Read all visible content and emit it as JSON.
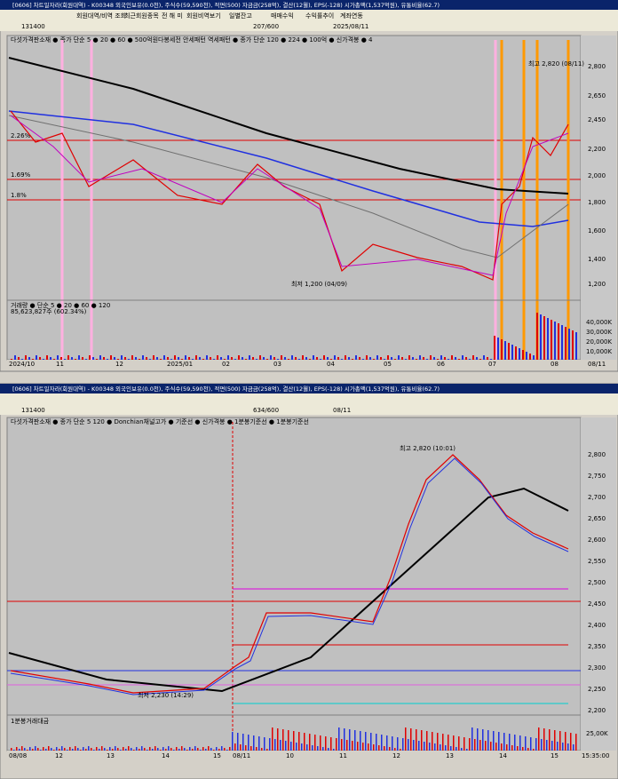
{
  "top_window": {
    "title": "[0606] 차트일자라(회원대역) - K00348 외국인보유(0.0천), 주식수(59,590천), 적면(500) 자금금(258억), 결산(12월), EPS(-128) 시가총액(1,537억원), 유통비율(62.7)",
    "toolbar": [
      "회원대역/비역 조회",
      "최근회원종목",
      "전 해 미",
      "회원비역보기",
      "일별잔고",
      "매매수익",
      "수익률추이",
      "계좌연동"
    ],
    "code": "131400",
    "period": "207/600",
    "date": "2025/08/11",
    "legend": "다섯가격판소재 ● 종가 단순 5 ● 20 ● 60 ● 500억원다봉세전 안세패턴 역세패턴 ● 종가 단순 120 ● 224 ● 100억 ● 신가격봉 ● 4",
    "price_ticks": [
      "2,800",
      "2,650",
      "2,450",
      "2,200",
      "2,000",
      "1,800",
      "1,600",
      "1,400",
      "1,200"
    ],
    "volume_ticks": [
      "40,000K",
      "30,000K",
      "20,000K",
      "10,000K"
    ],
    "percent_labels": [
      "2.26%",
      "1.69%",
      "1.8%"
    ],
    "high_note": "최고 2,820 (08/11)",
    "low_note": "최저 1,200 (04/09)",
    "volume_legend": "거래량 ● 단순 5 ● 20 ● 60 ● 120",
    "volume_value": "85,623,827주 (602.34%)",
    "x_labels": [
      "2024/10",
      "11",
      "12",
      "2025/01",
      "02",
      "03",
      "04",
      "05",
      "06",
      "07",
      "08",
      "08/11"
    ]
  },
  "bottom_window": {
    "title": "[0606] 차트일자라(회원대역) - K00348 외국인보유(0.0천), 주식수(59,590천), 적면(500) 자금금(258억), 결산(12월), EPS(-128) 시가총액(1,537억원), 유통비율(62.7)",
    "code": "131400",
    "period": "634/600",
    "date": "08/11",
    "legend": "다섯가격판소재 ● 종가 단순 5 120 ● Donchian채널고가 ● 기준선 ● 신가격봉 ● 1분봉기준선 ● 1분봉기준선",
    "price_ticks": [
      "2,800",
      "2,750",
      "2,700",
      "2,650",
      "2,600",
      "2,550",
      "2,500",
      "2,450",
      "2,400",
      "2,350",
      "2,300",
      "2,250",
      "2,200"
    ],
    "high_note": "최고 2,820 (10:01)",
    "low_note": "최저 2,230 (14:29)",
    "volume_legend": "1분봉거래대금",
    "volume_tick": "25,00K",
    "x_labels": [
      "08/08",
      "12",
      "13",
      "14",
      "15",
      "08/11",
      "10",
      "11",
      "12",
      "13",
      "14",
      "15",
      "15:35:00"
    ]
  }
}
